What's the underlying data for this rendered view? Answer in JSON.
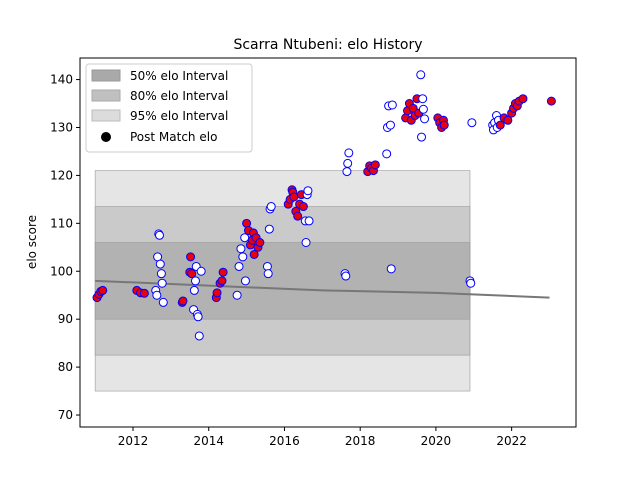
{
  "chart_data": {
    "type": "scatter",
    "title": "Scarra Ntubeni: elo History",
    "xlabel": "",
    "ylabel": "elo score",
    "xlim": [
      2010.6,
      2023.7
    ],
    "ylim": [
      67.5,
      144.5
    ],
    "x_ticks": [
      2012,
      2014,
      2016,
      2018,
      2020,
      2022
    ],
    "y_ticks": [
      70,
      80,
      90,
      100,
      110,
      120,
      130,
      140
    ],
    "grid": false,
    "legend": {
      "placement": "top-left",
      "entries": [
        "50% elo Interval",
        "80% elo Interval",
        "95% elo Interval",
        "Post Match elo"
      ]
    },
    "colors": {
      "band50": "#a9a9a9",
      "band80": "#c0c0c0",
      "band95": "#dcdcdc",
      "mean_line": "#777777",
      "point_fill_red": "#e8000b",
      "point_fill_white": "#ffffff",
      "point_edge": "#0000ff"
    },
    "intervals": {
      "x_start": 2011.0,
      "x_end": 2020.9,
      "band50_low": 90.0,
      "band50_high": 106.0,
      "band80_low": 82.5,
      "band80_high": 113.5,
      "band95_low": 75.0,
      "band95_high": 121.0
    },
    "mean_line": [
      [
        2011.0,
        98.0
      ],
      [
        2014.0,
        97.0
      ],
      [
        2017.0,
        96.0
      ],
      [
        2020.0,
        95.5
      ],
      [
        2023.0,
        94.5
      ]
    ],
    "series": [
      {
        "name": "Post Match elo",
        "points": [
          [
            2011.05,
            94.5,
            "red"
          ],
          [
            2011.1,
            95.2,
            "red"
          ],
          [
            2011.15,
            95.8,
            "red"
          ],
          [
            2011.2,
            96.0,
            "red"
          ],
          [
            2012.1,
            96.0,
            "red"
          ],
          [
            2012.2,
            95.5,
            "red"
          ],
          [
            2012.3,
            95.4,
            "red"
          ],
          [
            2012.6,
            96.0,
            "white"
          ],
          [
            2012.63,
            95.0,
            "white"
          ],
          [
            2012.65,
            103.0,
            "white"
          ],
          [
            2012.68,
            107.8,
            "white"
          ],
          [
            2012.7,
            107.5,
            "white"
          ],
          [
            2012.72,
            101.5,
            "white"
          ],
          [
            2012.75,
            99.5,
            "white"
          ],
          [
            2012.77,
            97.5,
            "white"
          ],
          [
            2012.8,
            93.5,
            "white"
          ],
          [
            2013.3,
            93.5,
            "red"
          ],
          [
            2013.32,
            93.8,
            "red"
          ],
          [
            2013.5,
            99.8,
            "red"
          ],
          [
            2013.52,
            103.0,
            "red"
          ],
          [
            2013.55,
            99.5,
            "red"
          ],
          [
            2013.6,
            92.0,
            "white"
          ],
          [
            2013.62,
            96.0,
            "white"
          ],
          [
            2013.65,
            98.0,
            "white"
          ],
          [
            2013.67,
            101.0,
            "white"
          ],
          [
            2013.7,
            91.0,
            "white"
          ],
          [
            2013.72,
            90.5,
            "white"
          ],
          [
            2013.75,
            86.5,
            "white"
          ],
          [
            2013.8,
            100.0,
            "white"
          ],
          [
            2014.2,
            94.5,
            "red"
          ],
          [
            2014.22,
            95.5,
            "red"
          ],
          [
            2014.3,
            97.5,
            "red"
          ],
          [
            2014.35,
            98.0,
            "red"
          ],
          [
            2014.38,
            99.8,
            "red"
          ],
          [
            2014.75,
            95.0,
            "white"
          ],
          [
            2014.8,
            101.0,
            "white"
          ],
          [
            2014.85,
            104.7,
            "white"
          ],
          [
            2014.9,
            103.0,
            "white"
          ],
          [
            2014.95,
            107.0,
            "white"
          ],
          [
            2014.97,
            98.0,
            "white"
          ],
          [
            2015.0,
            110.0,
            "red"
          ],
          [
            2015.05,
            108.5,
            "red"
          ],
          [
            2015.1,
            105.5,
            "red"
          ],
          [
            2015.15,
            106.5,
            "red"
          ],
          [
            2015.18,
            108.0,
            "red"
          ],
          [
            2015.2,
            103.5,
            "red"
          ],
          [
            2015.25,
            107.0,
            "red"
          ],
          [
            2015.3,
            105.0,
            "red"
          ],
          [
            2015.35,
            106.0,
            "red"
          ],
          [
            2015.55,
            101.0,
            "white"
          ],
          [
            2015.57,
            99.5,
            "white"
          ],
          [
            2015.6,
            108.8,
            "white"
          ],
          [
            2015.62,
            113.0,
            "white"
          ],
          [
            2015.65,
            113.5,
            "white"
          ],
          [
            2016.1,
            114.0,
            "red"
          ],
          [
            2016.15,
            115.0,
            "red"
          ],
          [
            2016.2,
            117.0,
            "red"
          ],
          [
            2016.22,
            116.5,
            "red"
          ],
          [
            2016.25,
            115.5,
            "red"
          ],
          [
            2016.3,
            112.5,
            "red"
          ],
          [
            2016.35,
            111.5,
            "red"
          ],
          [
            2016.4,
            114.0,
            "red"
          ],
          [
            2016.45,
            116.0,
            "red"
          ],
          [
            2016.5,
            113.5,
            "red"
          ],
          [
            2016.55,
            110.5,
            "white"
          ],
          [
            2016.57,
            106.0,
            "white"
          ],
          [
            2016.6,
            116.0,
            "white"
          ],
          [
            2016.62,
            116.8,
            "white"
          ],
          [
            2016.65,
            110.5,
            "white"
          ],
          [
            2017.6,
            99.5,
            "white"
          ],
          [
            2017.62,
            99.0,
            "white"
          ],
          [
            2017.65,
            120.8,
            "white"
          ],
          [
            2017.67,
            122.5,
            "white"
          ],
          [
            2017.7,
            124.7,
            "white"
          ],
          [
            2018.2,
            120.8,
            "red"
          ],
          [
            2018.25,
            122.0,
            "red"
          ],
          [
            2018.3,
            121.5,
            "red"
          ],
          [
            2018.35,
            121.0,
            "red"
          ],
          [
            2018.4,
            122.2,
            "red"
          ],
          [
            2018.7,
            124.5,
            "white"
          ],
          [
            2018.72,
            130.0,
            "white"
          ],
          [
            2018.75,
            134.5,
            "white"
          ],
          [
            2018.8,
            130.5,
            "white"
          ],
          [
            2018.82,
            100.5,
            "white"
          ],
          [
            2018.85,
            134.7,
            "white"
          ],
          [
            2019.2,
            132.0,
            "red"
          ],
          [
            2019.25,
            133.5,
            "red"
          ],
          [
            2019.3,
            135.0,
            "red"
          ],
          [
            2019.35,
            131.5,
            "red"
          ],
          [
            2019.4,
            134.0,
            "red"
          ],
          [
            2019.45,
            132.5,
            "red"
          ],
          [
            2019.5,
            136.0,
            "red"
          ],
          [
            2019.55,
            133.0,
            "red"
          ],
          [
            2019.6,
            141.0,
            "white"
          ],
          [
            2019.62,
            128.0,
            "white"
          ],
          [
            2019.65,
            136.0,
            "white"
          ],
          [
            2019.67,
            133.8,
            "white"
          ],
          [
            2019.7,
            131.8,
            "white"
          ],
          [
            2020.05,
            132.0,
            "red"
          ],
          [
            2020.1,
            131.0,
            "red"
          ],
          [
            2020.15,
            130.0,
            "red"
          ],
          [
            2020.2,
            131.5,
            "red"
          ],
          [
            2020.22,
            130.5,
            "red"
          ],
          [
            2020.9,
            98.0,
            "white"
          ],
          [
            2020.92,
            97.5,
            "white"
          ],
          [
            2020.95,
            131.0,
            "white"
          ],
          [
            2021.5,
            130.5,
            "white"
          ],
          [
            2021.52,
            129.5,
            "white"
          ],
          [
            2021.55,
            131.0,
            "white"
          ],
          [
            2021.6,
            132.5,
            "white"
          ],
          [
            2021.62,
            130.0,
            "white"
          ],
          [
            2021.65,
            131.5,
            "white"
          ],
          [
            2021.7,
            130.5,
            "red"
          ],
          [
            2021.8,
            132.0,
            "red"
          ],
          [
            2021.9,
            131.5,
            "red"
          ],
          [
            2022.0,
            133.0,
            "red"
          ],
          [
            2022.05,
            134.0,
            "red"
          ],
          [
            2022.1,
            135.0,
            "red"
          ],
          [
            2022.15,
            134.5,
            "red"
          ],
          [
            2022.2,
            135.5,
            "red"
          ],
          [
            2022.3,
            136.0,
            "red"
          ],
          [
            2023.05,
            135.5,
            "red"
          ]
        ]
      }
    ]
  }
}
